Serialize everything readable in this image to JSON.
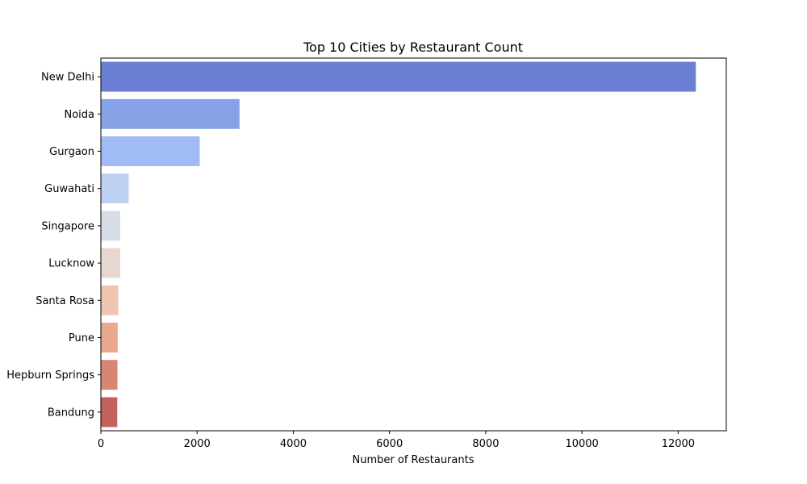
{
  "chart_data": {
    "type": "bar",
    "orientation": "horizontal",
    "title": "Top 10 Cities by Restaurant Count",
    "xlabel": "Number of Restaurants",
    "ylabel": "",
    "categories": [
      "New Delhi",
      "Noida",
      "Gurgaon",
      "Guwahati",
      "Singapore",
      "Lucknow",
      "Santa Rosa",
      "Pune",
      "Hepburn Springs",
      "Bandung"
    ],
    "values": [
      12367,
      2882,
      2055,
      579,
      402,
      402,
      362,
      350,
      345,
      340
    ],
    "colors": [
      "#6a7fd4",
      "#86a3e8",
      "#a1bbf6",
      "#bfd1f2",
      "#d8dce7",
      "#e6d8d0",
      "#eec6b0",
      "#e9a88d",
      "#d88572",
      "#c3615b"
    ],
    "xlim": [
      0,
      13000
    ],
    "xticks": [
      0,
      2000,
      4000,
      6000,
      8000,
      10000,
      12000
    ],
    "grid": false,
    "legend": "none"
  }
}
